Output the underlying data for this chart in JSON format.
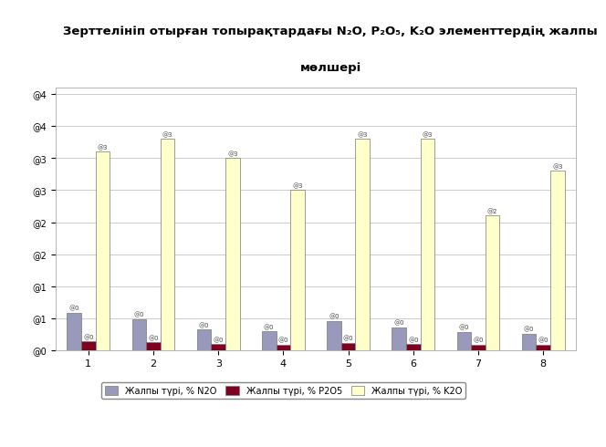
{
  "title_line1": "Зерттелініп отырған топырақтардағы N₂O, P₂O₅, K₂O элементтердің жалпы",
  "title_line2": "мөлшері",
  "categories": [
    "1",
    "2",
    "3",
    "4",
    "5",
    "6",
    "7",
    "8"
  ],
  "n2o": [
    0.059,
    0.049,
    0.033,
    0.03,
    0.046,
    0.036,
    0.029,
    0.026
  ],
  "p2o5": [
    0.014,
    0.013,
    0.01,
    0.009,
    0.012,
    0.01,
    0.009,
    0.009
  ],
  "k2o": [
    0.31,
    0.33,
    0.3,
    0.25,
    0.33,
    0.33,
    0.21,
    0.28
  ],
  "color_n2o": "#9999BB",
  "color_p2o5": "#800020",
  "color_k2o": "#FFFFCC",
  "legend_n2o": "Жалпы түрі, % N2O",
  "legend_p2o5": "Жалпы түрі, % P2O5",
  "legend_k2o": "Жалпы түрі, % K2O",
  "bar_edge_color": "#777777",
  "ytick_values": [
    0.0,
    0.05,
    0.1,
    0.15,
    0.2,
    0.25,
    0.3,
    0.35,
    0.4
  ],
  "ytick_labels": [
    "@0",
    "@1",
    "@1",
    "@2",
    "@2",
    "@3",
    "@3",
    "@4",
    "@4"
  ],
  "ylim_max": 0.41,
  "background_color": "#FFFFFF",
  "plot_bg_color": "#FFFFFF",
  "grid_color": "#CCCCCC",
  "title_bg_color": "#F0D0D0",
  "chart_border_color": "#AAAAAA"
}
